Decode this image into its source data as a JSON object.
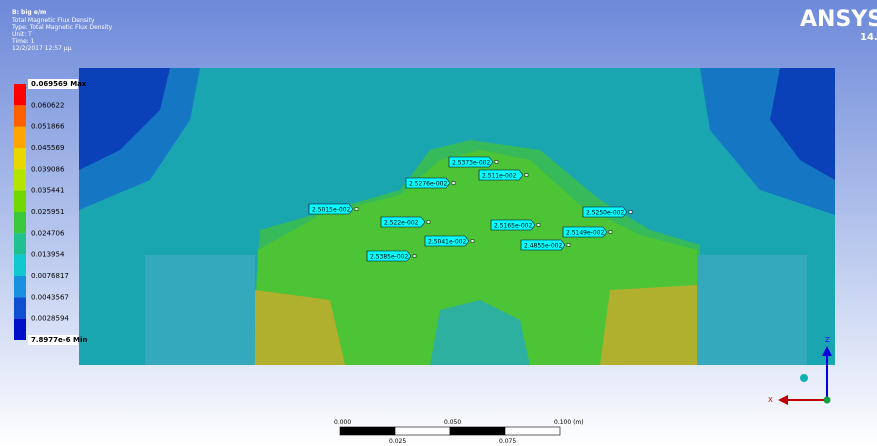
{
  "header": {
    "title": "B: big e/m",
    "lines": [
      "Total Magnetic Flux Density",
      "Type: Total Magnetic Flux Density",
      "Unit: T",
      "Time: 1",
      "12/2/2017 12:57 μμ"
    ]
  },
  "logo": "ANSYS",
  "version": "14.",
  "legend": {
    "labels": [
      "0.069569 Max",
      "0.060622",
      "0.051866",
      "0.045569",
      "0.039086",
      "0.035441",
      "0.025951",
      "0.024706",
      "0.013954",
      "0.0076817",
      "0.0043567",
      "0.0028594",
      "7.8977e-6 Min"
    ]
  },
  "probes": [
    "2.5373e-002",
    "2.511e-002",
    "2.5276e-002",
    "2.5015e-002",
    "2.522e-002",
    "2.5041e-002",
    "2.5165e-002",
    "2.5385e-002",
    "2.5250e-002",
    "2.5149e-002",
    "2.4855e-002"
  ],
  "scale": {
    "top": [
      "0.000",
      "0.050",
      "0.100 (m)"
    ],
    "bottom": [
      "0.025",
      "0.075"
    ]
  },
  "triad": {
    "z": "Z",
    "x": "X"
  }
}
